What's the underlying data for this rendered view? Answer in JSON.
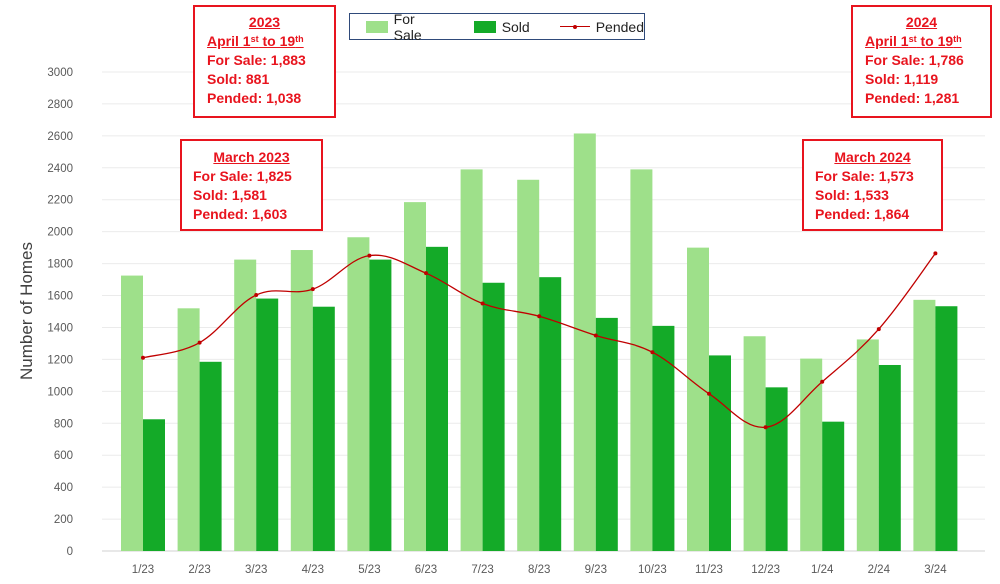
{
  "chart_data": {
    "type": "bar",
    "title": "",
    "xlabel": "",
    "ylabel": "Number of Homes",
    "ylim": [
      0,
      3000
    ],
    "yticks": [
      0,
      200,
      400,
      600,
      800,
      1000,
      1200,
      1400,
      1600,
      1800,
      2000,
      2200,
      2400,
      2600,
      2800,
      3000
    ],
    "grid": true,
    "categories": [
      "1/23",
      "2/23",
      "3/23",
      "4/23",
      "5/23",
      "6/23",
      "7/23",
      "8/23",
      "9/23",
      "10/23",
      "11/23",
      "12/23",
      "1/24",
      "2/24",
      "3/24"
    ],
    "series": [
      {
        "name": "For Sale",
        "kind": "bar",
        "color": "#9ee08a",
        "values": [
          1725,
          1520,
          1825,
          1885,
          1965,
          2185,
          2390,
          2325,
          2615,
          2390,
          1900,
          1345,
          1205,
          1325,
          1573
        ]
      },
      {
        "name": "Sold",
        "kind": "bar",
        "color": "#14aa28",
        "values": [
          825,
          1185,
          1581,
          1530,
          1825,
          1905,
          1680,
          1715,
          1460,
          1410,
          1225,
          1025,
          810,
          1165,
          1533
        ]
      },
      {
        "name": "Pended",
        "kind": "line",
        "color": "#c00000",
        "values": [
          1210,
          1305,
          1603,
          1640,
          1850,
          1740,
          1550,
          1470,
          1350,
          1245,
          985,
          775,
          1060,
          1390,
          1864
        ]
      }
    ],
    "legend": {
      "position": "top-center",
      "entries": [
        "For Sale",
        "Sold",
        "Pended"
      ]
    },
    "annotations": [
      {
        "id": "box2023",
        "title": "2023",
        "subtitle_pre": "April 1",
        "sup1": "st",
        "subtitle_mid": " to 19",
        "sup2": "th",
        "rows": [
          "For Sale:  1,883",
          "Sold:  881",
          "Pended:  1,038"
        ]
      },
      {
        "id": "boxMar2023",
        "title": "March 2023",
        "rows": [
          "For Sale:  1,825",
          "Sold:  1,581",
          "Pended:  1,603"
        ]
      },
      {
        "id": "box2024",
        "title": "2024",
        "subtitle_pre": "April 1",
        "sup1": "st",
        "subtitle_mid": " to 19",
        "sup2": "th",
        "rows": [
          "For Sale:  1,786",
          "Sold:  1,119",
          "Pended:  1,281"
        ]
      },
      {
        "id": "boxMar2024",
        "title": "March 2024",
        "rows": [
          "For Sale:  1,573",
          "Sold:  1,533",
          "Pended:  1,864"
        ]
      }
    ]
  }
}
